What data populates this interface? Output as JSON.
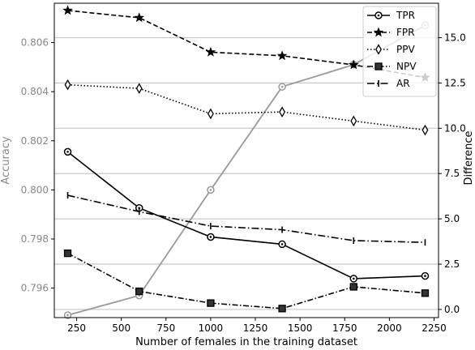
{
  "chart_data": {
    "type": "line",
    "title": "",
    "xlabel": "Number of females in the training dataset",
    "ylabel_left": "Accuracy",
    "ylabel_right": "Difference",
    "xlim": [
      125,
      2275
    ],
    "ylim_left": [
      0.7948,
      0.8076
    ],
    "ylim_right": [
      -0.45,
      16.9
    ],
    "x_ticks": [
      250,
      500,
      750,
      1000,
      1250,
      1500,
      1750,
      2000,
      2250
    ],
    "y_ticks_left": [
      0.796,
      0.798,
      0.8,
      0.802,
      0.804,
      0.806
    ],
    "y_tick_labels_left": [
      "0.796",
      "0.798",
      "0.800",
      "0.802",
      "0.804",
      "0.806"
    ],
    "y_ticks_right": [
      0.0,
      2.5,
      5.0,
      7.5,
      10.0,
      12.5,
      15.0
    ],
    "y_tick_labels_right": [
      "0.0",
      "2.5",
      "5.0",
      "7.5",
      "10.0",
      "12.5",
      "15.0"
    ],
    "right_gridlines": true,
    "legend_position": "top-right",
    "accuracy": {
      "axis": "left",
      "color": "#999999",
      "x": [
        200,
        600,
        1000,
        1400,
        1800,
        2200
      ],
      "values": [
        0.7949,
        0.7957,
        0.8,
        0.8042,
        0.8051,
        0.8067
      ]
    },
    "series": [
      {
        "name": "TPR",
        "marker": "circle-dot",
        "dash": "",
        "x": [
          200,
          600,
          1000,
          1400,
          1800,
          2200
        ],
        "values": [
          8.7,
          5.6,
          4.0,
          3.6,
          1.7,
          1.85
        ]
      },
      {
        "name": "FPR",
        "marker": "star",
        "dash": "6,3",
        "x": [
          200,
          600,
          1000,
          1400,
          1800,
          2200
        ],
        "values": [
          16.5,
          16.1,
          14.2,
          14.0,
          13.5,
          12.8
        ]
      },
      {
        "name": "PPV",
        "marker": "thin-diamond",
        "dash": "1.5,2.5",
        "x": [
          200,
          600,
          1000,
          1400,
          1800,
          2200
        ],
        "values": [
          12.4,
          12.2,
          10.8,
          10.9,
          10.4,
          9.9
        ]
      },
      {
        "name": "NPV",
        "marker": "square",
        "dash": "7,2.5,1.5,2.5",
        "x": [
          200,
          600,
          1000,
          1400,
          1800,
          2200
        ],
        "values": [
          3.1,
          1.0,
          0.35,
          0.05,
          1.25,
          0.9
        ]
      },
      {
        "name": "AR",
        "marker": "tick",
        "dash": "9,3,1.5,3",
        "x": [
          200,
          600,
          1000,
          1400,
          1800,
          2200
        ],
        "values": [
          6.3,
          5.4,
          4.6,
          4.4,
          3.8,
          3.7
        ]
      }
    ]
  }
}
